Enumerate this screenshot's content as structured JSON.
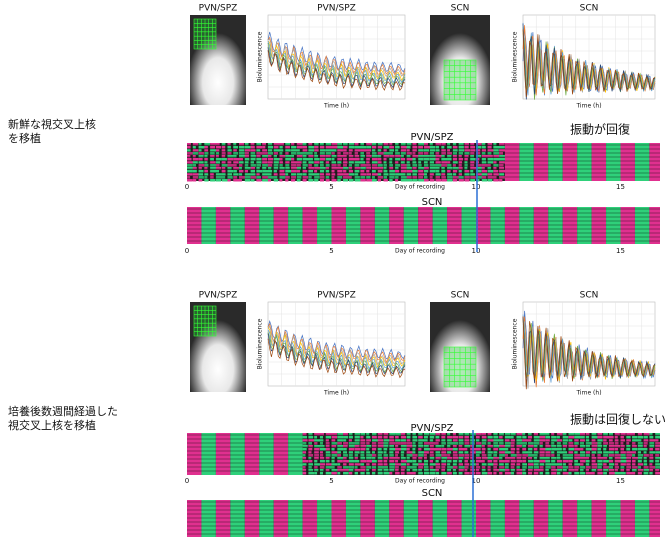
{
  "sections": [
    {
      "caption": [
        "新鮮な視交叉上核",
        "を移植"
      ],
      "annotation": "振動が回復",
      "panels": [
        {
          "title": "PVN/SPZ"
        },
        {
          "title": "PVN/SPZ",
          "y_label": "Bioluminescence",
          "x_label": "Time (h)"
        },
        {
          "title": "SCN"
        },
        {
          "title": "SCN",
          "y_label": "Bioluminescence",
          "x_label": "Time (h)"
        }
      ],
      "rasters": [
        {
          "title": "PVN/SPZ",
          "x_label": "Day of recording",
          "ticks": [
            0,
            5,
            10,
            15
          ]
        },
        {
          "title": "SCN",
          "x_label": "Day of recording",
          "ticks": [
            0,
            5,
            10,
            15
          ]
        }
      ]
    },
    {
      "caption": [
        "培養後数週間経過した",
        "視交叉上核を移植"
      ],
      "annotation": "振動は回復しない",
      "panels": [
        {
          "title": "PVN/SPZ"
        },
        {
          "title": "PVN/SPZ",
          "y_label": "Bioluminescence",
          "x_label": "Time (h)"
        },
        {
          "title": "SCN"
        },
        {
          "title": "SCN",
          "y_label": "Bioluminescence",
          "x_label": "Time (h)"
        }
      ],
      "rasters": [
        {
          "title": "PVN/SPZ",
          "x_label": "Day of recording",
          "ticks": [
            0,
            5,
            10,
            15
          ]
        },
        {
          "title": "SCN"
        }
      ]
    }
  ]
}
